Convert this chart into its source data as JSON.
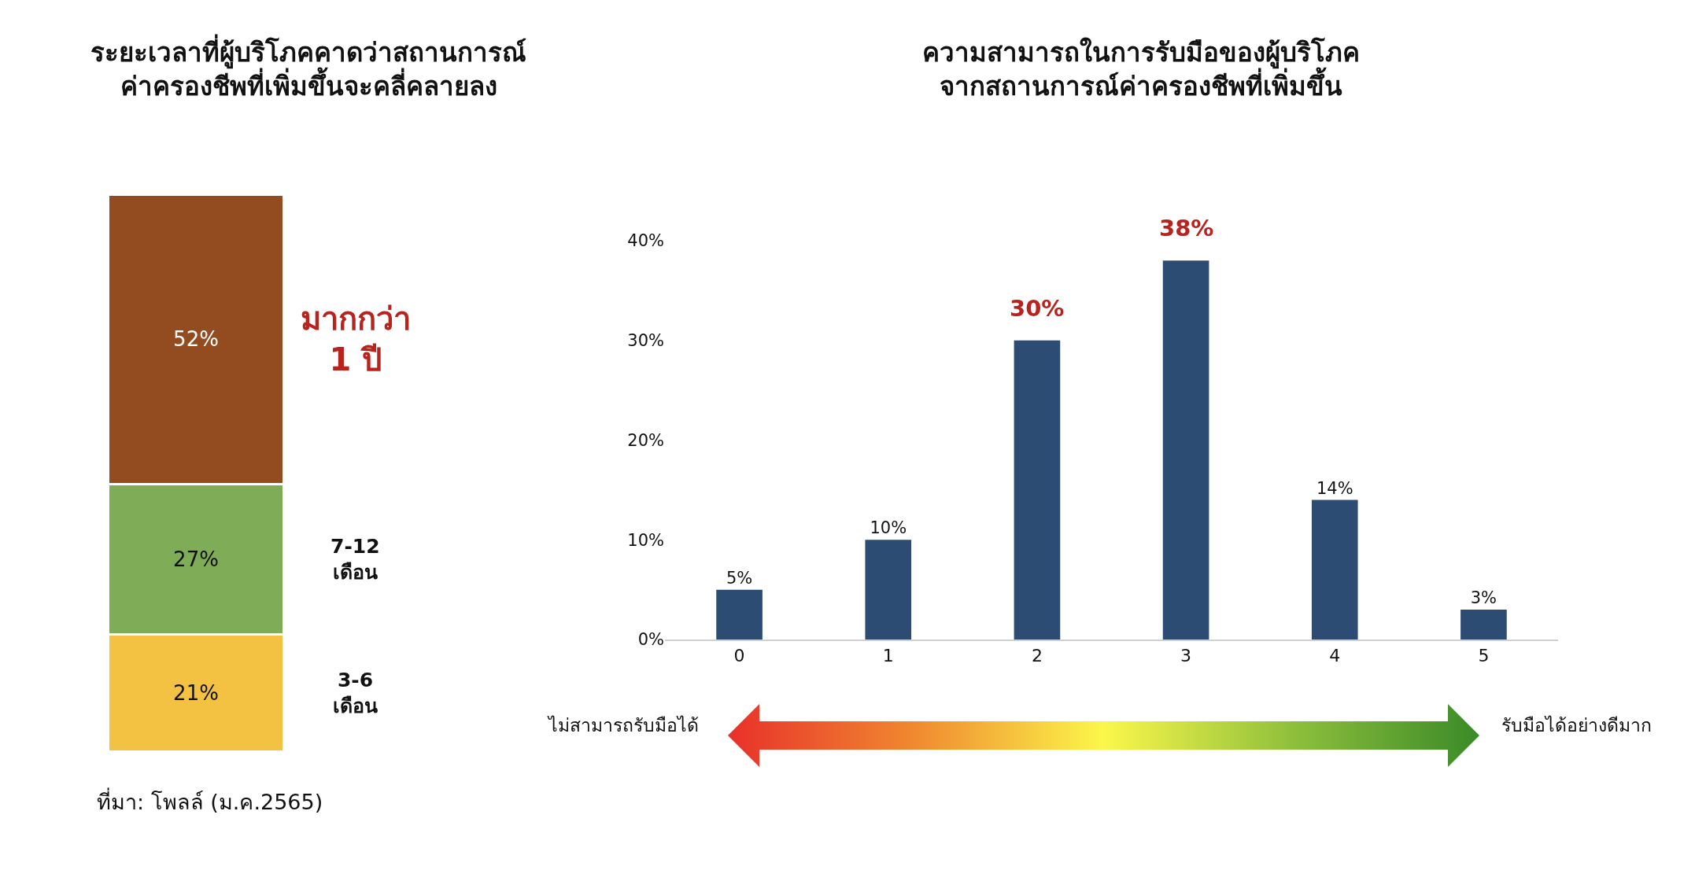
{
  "chart_data": [
    {
      "type": "bar",
      "stacked": true,
      "title": "ระยะเวลาที่ผู้บริโภคคาดว่าสถานการณ์\nค่าครองชีพที่เพิ่มขึ้นจะคลี่คลายลง",
      "categories": [
        null
      ],
      "series": [
        {
          "name": "3-6\nเดือน",
          "color": "#f4c242",
          "values": [
            21
          ],
          "value_labels": [
            "21%"
          ]
        },
        {
          "name": "7-12\nเดือน",
          "color": "#7fac56",
          "values": [
            27
          ],
          "value_labels": [
            "27%"
          ]
        },
        {
          "name": "มากกว่า\n1 ปี",
          "color": "#934c20",
          "values": [
            52
          ],
          "value_labels": [
            "52%"
          ]
        }
      ],
      "annotations": [
        "ที่มา: โพลล์ (ม.ค.2565)"
      ]
    },
    {
      "type": "bar",
      "title": "ความสามารถในการรับมือของผู้บริโภค\nจากสถานการณ์ค่าครองชีพที่เพิ่มขึ้น",
      "categories": [
        "0",
        "1",
        "2",
        "3",
        "4",
        "5"
      ],
      "values": [
        5,
        10,
        30,
        38,
        14,
        3
      ],
      "color": "#2c4c74",
      "ylim": [
        0,
        40
      ],
      "yticks": [
        {
          "value": 0,
          "label": "0%"
        },
        {
          "value": 10,
          "label": "10%"
        },
        {
          "value": 20,
          "label": "20%"
        },
        {
          "value": 30,
          "label": "30%"
        },
        {
          "value": 40,
          "label": "40%"
        }
      ],
      "value_labels": [
        "5%",
        "10%",
        null,
        null,
        "14%",
        "3%"
      ],
      "annotations": [
        {
          "text": "30%",
          "x": "2",
          "y": 30
        },
        {
          "text": "38%",
          "x": "3",
          "y": 38
        },
        "ไม่สามารถรับมือได้",
        "รับมือได้อย่างดีมาก"
      ]
    }
  ]
}
